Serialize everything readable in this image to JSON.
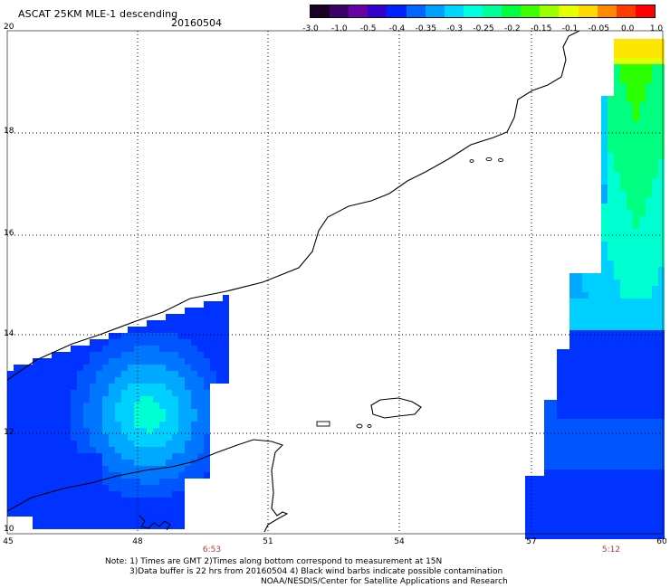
{
  "header": {
    "title": "ASCAT 25KM MLE-1 descending",
    "date": "20160504"
  },
  "colorbar": {
    "labels": [
      "-3.0",
      "-1.0",
      "-0.5",
      "-0.4",
      "-0.35",
      "-0.3",
      "-0.25",
      "-0.2",
      "-0.15",
      "-0.1",
      "-0.05",
      "0.0",
      "1.0"
    ],
    "colors": [
      "#1a0026",
      "#3d0066",
      "#6a00a8",
      "#3300cc",
      "#0022ff",
      "#0066ff",
      "#00a0ff",
      "#00d6ff",
      "#00ffe0",
      "#00ff9a",
      "#00ff40",
      "#3cff00",
      "#9cff00",
      "#e6ff00",
      "#ffd800",
      "#ff8a00",
      "#ff3c00",
      "#ff0000"
    ]
  },
  "axes": {
    "y_labels": [
      "20",
      "18",
      "16",
      "14",
      "12",
      "10"
    ],
    "x_labels": [
      "45",
      "48",
      "51",
      "54",
      "57",
      "60"
    ],
    "pass_times": [
      "6:53",
      "5:12"
    ]
  },
  "map": {
    "ocean_color": "#ffffff",
    "coast_color": "#000000",
    "grid_color": "#000000",
    "swath_palette": [
      "#0033ff",
      "#0055ff",
      "#0077ff",
      "#00a8ff",
      "#00d0ff",
      "#00ffd0",
      "#00ff80",
      "#2cff00",
      "#8cff00",
      "#e0ff00",
      "#ffe600",
      "#ffb400"
    ]
  },
  "notes": {
    "line1": "Note: 1) Times are GMT 2)Times along bottom correspond to measurement at 15N",
    "line2": "3)Data buffer is 22 hrs from 20160504 4) Black wind barbs indicate possible contamination",
    "line3": "NOAA/NESDIS/Center for Satellite Applications and Research"
  }
}
